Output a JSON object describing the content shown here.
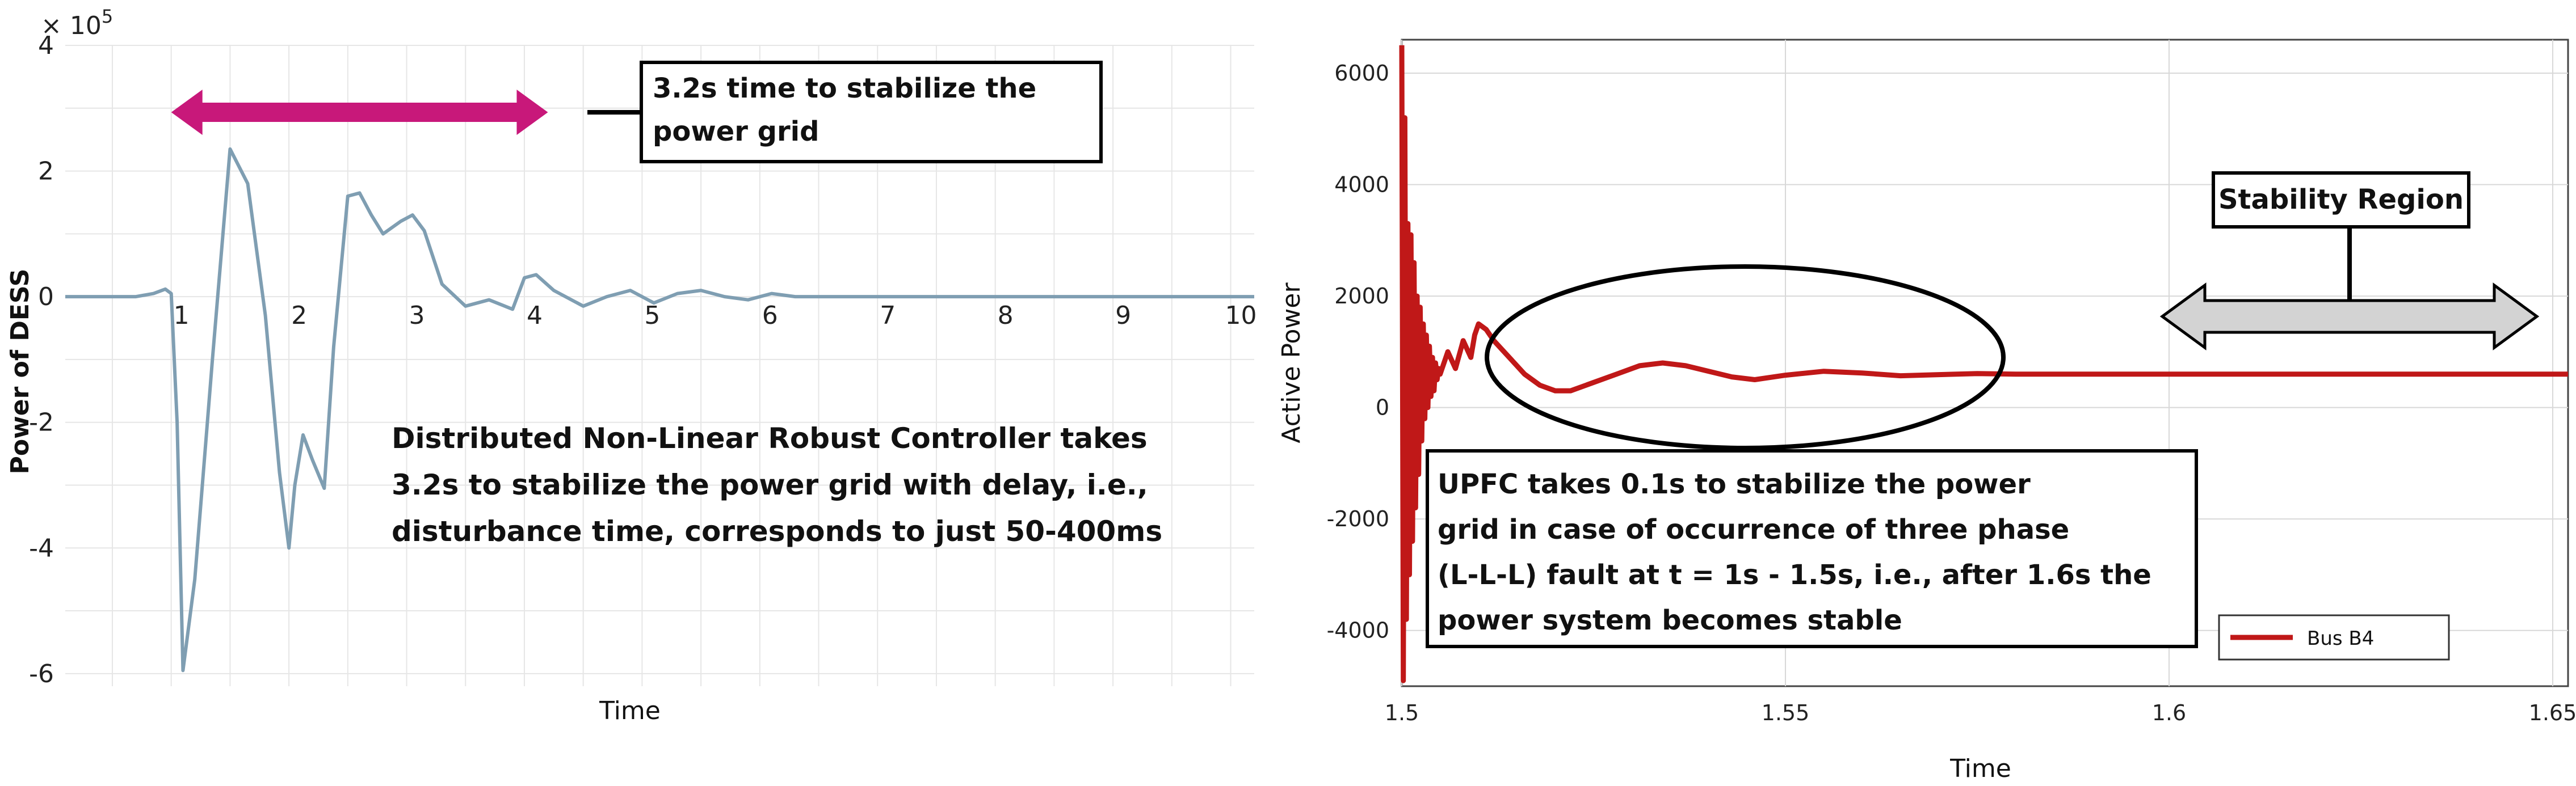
{
  "chart_data": [
    {
      "type": "line",
      "title": "",
      "xlabel": "Time",
      "ylabel": "Power of DESS",
      "y_exponent_label": "× 10",
      "y_exponent_power": "5",
      "xlim": [
        0.1,
        10.2
      ],
      "ylim": [
        -6.2,
        4
      ],
      "grid": true,
      "x_ticks": [
        "1",
        "2",
        "3",
        "4",
        "5",
        "6",
        "7",
        "8",
        "9",
        "10"
      ],
      "y_ticks": [
        "4",
        "2",
        "0",
        "-2",
        "-4",
        "-6"
      ],
      "series": [
        {
          "color": "#7f9eb2",
          "x": [
            0.1,
            0.7,
            0.85,
            0.95,
            1.0,
            1.05,
            1.1,
            1.2,
            1.35,
            1.5,
            1.65,
            1.8,
            1.92,
            2.0,
            2.05,
            2.12,
            2.2,
            2.3,
            2.38,
            2.5,
            2.6,
            2.7,
            2.8,
            2.95,
            3.05,
            3.15,
            3.3,
            3.5,
            3.7,
            3.9,
            4.0,
            4.1,
            4.25,
            4.5,
            4.7,
            4.9,
            5.1,
            5.3,
            5.5,
            5.7,
            5.9,
            6.1,
            6.3,
            6.6,
            7.0,
            8.0,
            10.2
          ],
          "y": [
            0,
            0,
            0.05,
            0.12,
            0.05,
            -2.0,
            -5.95,
            -4.5,
            -1.0,
            2.35,
            1.8,
            -0.3,
            -2.8,
            -4.0,
            -3.0,
            -2.2,
            -2.6,
            -3.05,
            -0.8,
            1.6,
            1.65,
            1.3,
            1.0,
            1.2,
            1.3,
            1.05,
            0.2,
            -0.15,
            -0.05,
            -0.2,
            0.3,
            0.35,
            0.1,
            -0.15,
            0.0,
            0.1,
            -0.1,
            0.05,
            0.1,
            0.0,
            -0.05,
            0.05,
            0.0,
            0.0,
            0.0,
            0.0,
            0.0
          ]
        }
      ],
      "annotations": {
        "stabilize_box": "3.2s time to stabilize the power grid",
        "stabilize_box_lines": [
          "3.2s time to stabilize the",
          "power grid"
        ],
        "controller_note": "Distributed Non-Linear Robust Controller takes 3.2s to stabilize the power grid with delay, i.e., disturbance time, corresponds to just 50-400ms",
        "controller_note_lines": [
          "Distributed Non-Linear Robust Controller takes",
          "3.2s to stabilize the power grid with delay, i.e.,",
          "disturbance time, corresponds to just 50-400ms"
        ],
        "arrow_color": "#c8187a",
        "arrow_span_x": [
          1.0,
          4.2
        ]
      }
    },
    {
      "type": "line",
      "title": "",
      "xlabel": "Time",
      "ylabel": "Active Power",
      "xlim": [
        1.5,
        1.652
      ],
      "ylim": [
        -5000,
        6600
      ],
      "grid": true,
      "x_ticks": [
        "1.5",
        "1.55",
        "1.6",
        "1.65"
      ],
      "y_ticks": [
        "6000",
        "4000",
        "2000",
        "0",
        "-2000",
        "-4000"
      ],
      "series": [
        {
          "name": "Bus B4",
          "color": "#c01818",
          "x": [
            1.5,
            1.5002,
            1.5004,
            1.5006,
            1.5008,
            1.501,
            1.5012,
            1.5014,
            1.5016,
            1.5018,
            1.502,
            1.5022,
            1.5024,
            1.5026,
            1.5028,
            1.503,
            1.5032,
            1.5034,
            1.5036,
            1.5038,
            1.504,
            1.5042,
            1.5044,
            1.5046,
            1.5048,
            1.505,
            1.506,
            1.507,
            1.508,
            1.509,
            1.5095,
            1.51,
            1.511,
            1.512,
            1.514,
            1.516,
            1.518,
            1.52,
            1.522,
            1.525,
            1.528,
            1.531,
            1.534,
            1.537,
            1.54,
            1.543,
            1.546,
            1.55,
            1.555,
            1.56,
            1.565,
            1.57,
            1.575,
            1.58,
            1.6,
            1.652
          ],
          "y": [
            6500,
            -4900,
            5200,
            -3800,
            3300,
            -3000,
            3100,
            -2400,
            2600,
            -1800,
            2000,
            -1200,
            1800,
            -600,
            1500,
            -200,
            1300,
            0,
            1100,
            200,
            900,
            300,
            800,
            500,
            700,
            600,
            1000,
            700,
            1200,
            900,
            1300,
            1500,
            1400,
            1200,
            900,
            600,
            400,
            300,
            300,
            450,
            600,
            750,
            800,
            750,
            650,
            550,
            500,
            580,
            650,
            620,
            570,
            590,
            610,
            600,
            600,
            600
          ]
        }
      ],
      "annotations": {
        "stability_label": "Stability Region",
        "upfc_note": "UPFC takes 0.1s to stabilize the power grid in case of occurrence of three phase (L-L-L) fault at t = 1s - 1.5s, i.e., after 1.6s the power system becomes stable",
        "upfc_note_lines": [
          "UPFC takes 0.1s to stabilize the power",
          "grid in case of occurrence of three phase",
          "(L-L-L) fault at t = 1s - 1.5s, i.e., after 1.6s the",
          "power system becomes stable"
        ]
      },
      "legend": {
        "placement": "bottom-right",
        "entries": [
          "Bus B4"
        ]
      }
    }
  ]
}
